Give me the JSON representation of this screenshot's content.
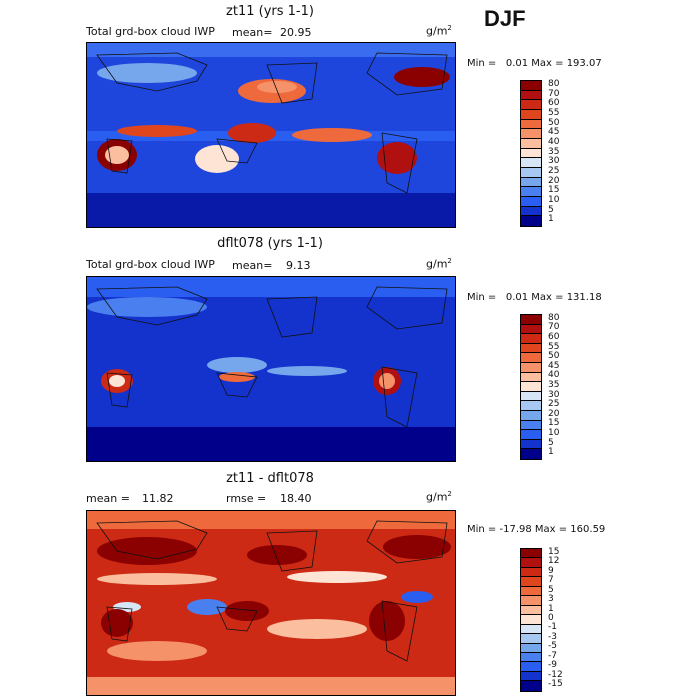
{
  "season": "DJF",
  "panels": [
    {
      "title": "zt11 (yrs 1-1)",
      "subtitle": "Total grd-box cloud IWP",
      "mean_label": "mean=",
      "mean_value": "20.95",
      "units": "g/m",
      "units_sup": "2",
      "stats": "Min =   0.01 Max = 193.07",
      "colorbar_labels": [
        "80",
        "70",
        "60",
        "55",
        "50",
        "45",
        "40",
        "35",
        "30",
        "25",
        "20",
        "15",
        "10",
        "5",
        "1"
      ]
    },
    {
      "title": "dflt078 (yrs 1-1)",
      "subtitle": "Total grd-box cloud IWP",
      "mean_label": "mean=",
      "mean_value": "9.13",
      "units": "g/m",
      "units_sup": "2",
      "stats": "Min =   0.01 Max = 131.18",
      "colorbar_labels": [
        "80",
        "70",
        "60",
        "55",
        "50",
        "45",
        "40",
        "35",
        "30",
        "25",
        "20",
        "15",
        "10",
        "5",
        "1"
      ]
    },
    {
      "title": "zt11 - dflt078",
      "mean_label": "mean =",
      "mean_value": "11.82",
      "rmse_label": "rmse =",
      "rmse_value": "18.40",
      "units": "g/m",
      "units_sup": "2",
      "stats": "Min = -17.98 Max = 160.59",
      "colorbar_labels": [
        "15",
        "12",
        "9",
        "7",
        "5",
        "3",
        "1",
        "0",
        "-1",
        "-3",
        "-5",
        "-7",
        "-9",
        "-12",
        "-15"
      ]
    }
  ],
  "colors": {
    "iwp_scale": [
      "#8b0000",
      "#b01010",
      "#cc2a14",
      "#e0461e",
      "#ee6a3c",
      "#f5926a",
      "#fbbe9f",
      "#fde4d4",
      "#d6e6f7",
      "#a7c8f0",
      "#76a6ec",
      "#4a7ff0",
      "#2a5ef0",
      "#1432cc",
      "#00008b"
    ],
    "diff_scale": [
      "#8b0000",
      "#b01010",
      "#cc2a14",
      "#e0461e",
      "#ee6a3c",
      "#f5926a",
      "#fbbe9f",
      "#fde4d4",
      "#d6e6f7",
      "#a7c8f0",
      "#76a6ec",
      "#4a7ff0",
      "#2a5ef0",
      "#1432cc",
      "#00008b"
    ]
  }
}
